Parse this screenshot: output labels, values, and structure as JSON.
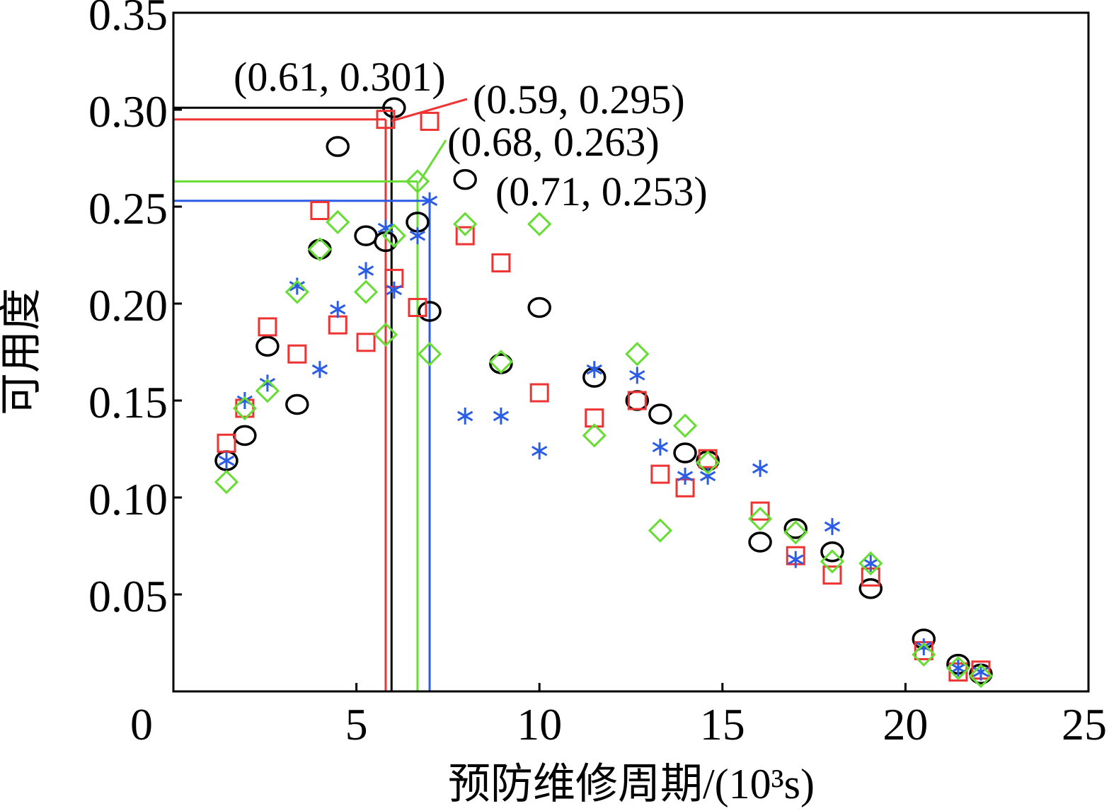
{
  "chart_data": {
    "type": "scatter",
    "xlabel": "预防维修周期/(10³s)",
    "ylabel": "可用度",
    "xlim": [
      0,
      25
    ],
    "ylim": [
      0,
      0.35
    ],
    "xticks": [
      0,
      5,
      10,
      15,
      20,
      25
    ],
    "xtick_labels": [
      "0",
      "5",
      "10",
      "15",
      "20",
      "25"
    ],
    "yticks": [
      0.05,
      0.1,
      0.15,
      0.2,
      0.25,
      0.3,
      0.35
    ],
    "ytick_labels": [
      "0.05",
      "0.10",
      "0.15",
      "0.20",
      "0.25",
      "0.30",
      "0.35"
    ],
    "grid": false,
    "legend": "none",
    "x": [
      1.45,
      1.95,
      2.57,
      3.38,
      4.0,
      4.49,
      5.26,
      5.8,
      6.03,
      6.67,
      7.0,
      7.97,
      8.95,
      10.0,
      11.5,
      12.67,
      13.3,
      13.98,
      14.6,
      16.03,
      17.0,
      18.0,
      19.05,
      20.5,
      21.44,
      22.06
    ],
    "series": [
      {
        "marker": "circle",
        "color": "#000000",
        "values": [
          0.119,
          0.132,
          0.178,
          0.148,
          0.228,
          0.281,
          0.235,
          0.232,
          0.301,
          0.242,
          0.196,
          0.264,
          0.169,
          0.198,
          0.162,
          0.15,
          0.143,
          0.123,
          0.119,
          0.077,
          0.084,
          0.072,
          0.053,
          0.027,
          0.014,
          0.009
        ]
      },
      {
        "marker": "square",
        "color": "#ee3333",
        "values": [
          0.128,
          0.146,
          0.188,
          0.174,
          0.248,
          0.189,
          0.18,
          0.295,
          0.213,
          0.198,
          0.294,
          0.235,
          0.221,
          0.154,
          0.141,
          0.15,
          0.112,
          0.105,
          0.12,
          0.093,
          0.07,
          0.06,
          0.059,
          0.021,
          0.01,
          0.011
        ]
      },
      {
        "marker": "asterisk",
        "color": "#2b5ce6",
        "values": [
          0.119,
          0.15,
          0.159,
          0.209,
          0.166,
          0.197,
          0.217,
          0.239,
          0.207,
          0.235,
          0.253,
          0.142,
          0.142,
          0.124,
          0.166,
          0.163,
          0.126,
          0.111,
          0.111,
          0.115,
          0.068,
          0.085,
          0.066,
          0.023,
          0.012,
          0.01
        ]
      },
      {
        "marker": "diamond",
        "color": "#66dd33",
        "values": [
          0.108,
          0.146,
          0.155,
          0.206,
          0.228,
          0.242,
          0.206,
          0.184,
          0.235,
          0.263,
          0.174,
          0.241,
          0.17,
          0.241,
          0.132,
          0.174,
          0.083,
          0.137,
          0.118,
          0.089,
          0.082,
          0.067,
          0.066,
          0.019,
          0.012,
          0.008
        ]
      }
    ],
    "reference_lines": [
      {
        "x": 5.96,
        "y": 0.301,
        "color": "#000000"
      },
      {
        "x": 5.8,
        "y": 0.295,
        "color": "#ee3333"
      },
      {
        "x": 6.67,
        "y": 0.263,
        "color": "#66dd33"
      },
      {
        "x": 7.0,
        "y": 0.253,
        "color": "#2b5ce6"
      }
    ],
    "annotations": [
      {
        "text": "(0.61, 0.301)",
        "color": "#000000"
      },
      {
        "text": "(0.59, 0.295)",
        "color": "#000000"
      },
      {
        "text": "(0.68, 0.263)",
        "color": "#000000"
      },
      {
        "text": "(0.71, 0.253)",
        "color": "#000000"
      }
    ]
  }
}
